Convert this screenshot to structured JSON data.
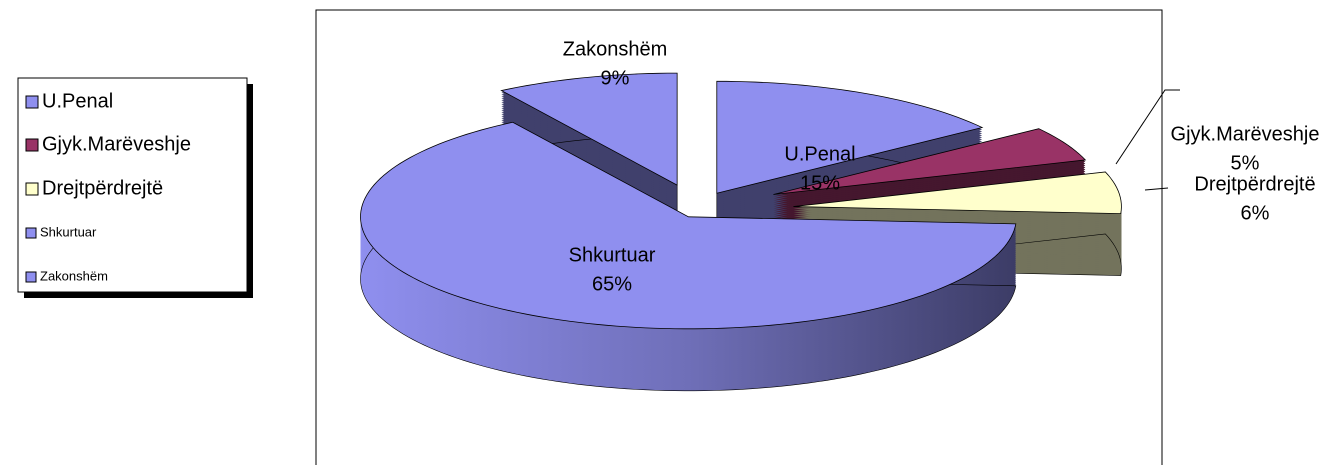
{
  "chart_data": {
    "type": "pie",
    "categories": [
      "U.Penal",
      "Gjyk.Marëveshje",
      "Drejtpërdrejtë",
      "Shkurtuar",
      "Zakonshëm"
    ],
    "values": [
      15,
      5,
      6,
      65,
      9
    ],
    "value_labels": [
      "15%",
      "5%",
      "6%",
      "65%",
      "9%"
    ],
    "colors": [
      "#8f8fef",
      "#993366",
      "#ffffcc",
      "#8f8fef",
      "#8f8fef"
    ],
    "legend": "left"
  }
}
